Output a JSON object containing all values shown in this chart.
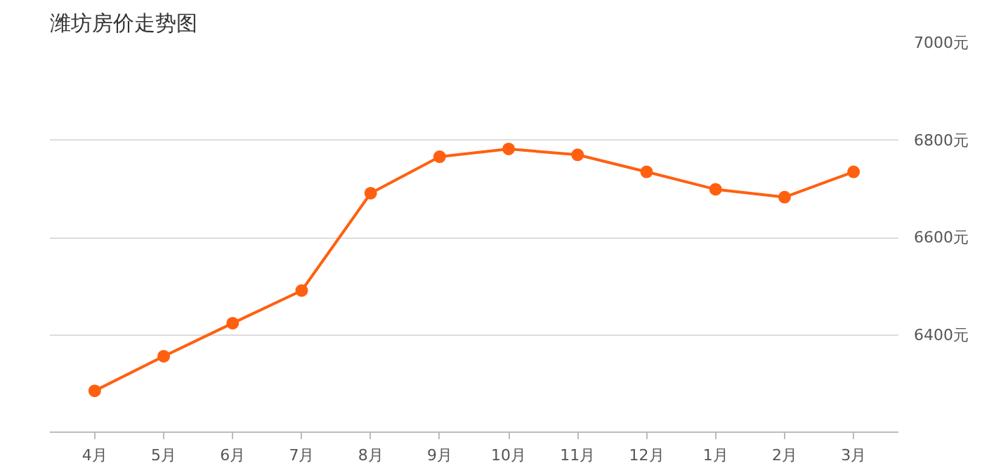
{
  "chart_data": {
    "type": "line",
    "title": "潍坊房价走势图",
    "categories": [
      "4月",
      "5月",
      "6月",
      "7月",
      "8月",
      "9月",
      "10月",
      "11月",
      "12月",
      "1月",
      "2月",
      "3月"
    ],
    "series": [
      {
        "color": "#ff6010",
        "values": [
          6285,
          6356,
          6424,
          6491,
          6691,
          6766,
          6782,
          6770,
          6735,
          6699,
          6683,
          6735
        ]
      }
    ],
    "ylim": [
      6200,
      7000
    ],
    "yticks": [
      {
        "value": 6400,
        "label": "6400元"
      },
      {
        "value": 6600,
        "label": "6600元"
      },
      {
        "value": 6800,
        "label": "6800元"
      },
      {
        "value": 7000,
        "label": "7000元"
      }
    ],
    "grid": "y",
    "marker": "circle",
    "line_style": "solid"
  }
}
